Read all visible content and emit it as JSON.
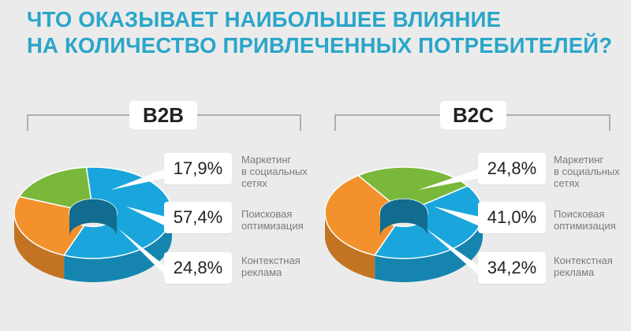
{
  "header": {
    "title_line1": "ЧТО ОКАЗЫВАЕТ НАИБОЛЬШЕЕ ВЛИЯНИЕ",
    "title_line2": "НА КОЛИЧЕСТВО ПРИВЛЕЧЕННЫХ ПОТРЕБИТЕЛЕЙ?"
  },
  "colors": {
    "title": "#2aa6c9",
    "green": "#79b83a",
    "blue": "#1aa6dc",
    "orange": "#f3912c"
  },
  "chart_data": [
    {
      "type": "pie",
      "title": "B2B",
      "categories": [
        "Маркетинг в социальных сетях",
        "Поисковая оптимизация",
        "Контекстная реклама"
      ],
      "values": [
        17.9,
        57.4,
        24.8
      ],
      "value_labels": [
        "17,9%",
        "57,4%",
        "24,8%"
      ],
      "label_lines": [
        [
          "Маркетинг",
          "в социальных",
          "сетях"
        ],
        [
          "Поисковая",
          "оптимизация"
        ],
        [
          "Контекстная",
          "реклама"
        ]
      ],
      "colors": [
        "#79b83a",
        "#1aa6dc",
        "#f3912c"
      ],
      "style": "3d-donut"
    },
    {
      "type": "pie",
      "title": "B2C",
      "categories": [
        "Маркетинг в социальных сетях",
        "Поисковая оптимизация",
        "Контекстная реклама"
      ],
      "values": [
        24.8,
        41.0,
        34.2
      ],
      "value_labels": [
        "24,8%",
        "41,0%",
        "34,2%"
      ],
      "label_lines": [
        [
          "Маркетинг",
          "в социальных",
          "сетях"
        ],
        [
          "Поисковая",
          "оптимизация"
        ],
        [
          "Контекстная",
          "реклама"
        ]
      ],
      "colors": [
        "#79b83a",
        "#1aa6dc",
        "#f3912c"
      ],
      "style": "3d-donut"
    }
  ]
}
